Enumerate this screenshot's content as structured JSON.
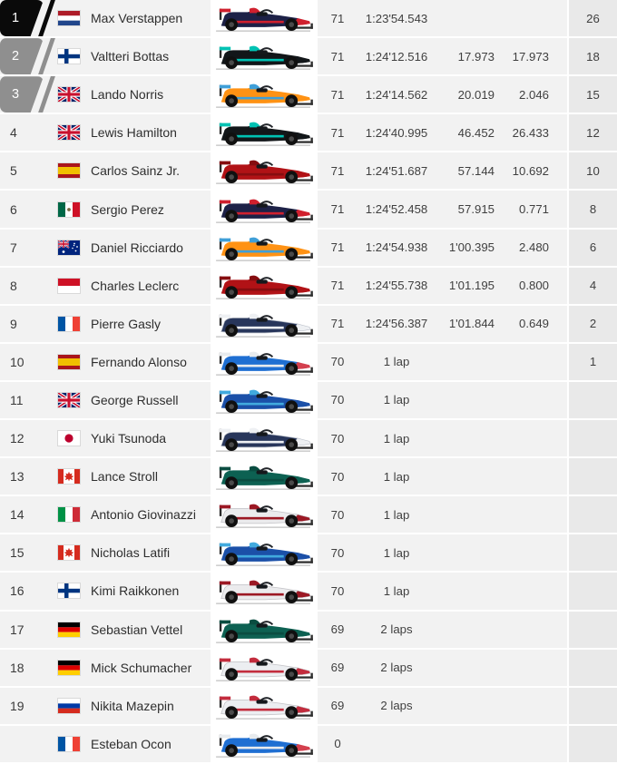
{
  "table": {
    "name": "race-results",
    "colors": {
      "row_bg": "#f2f2f2",
      "points_col_bg": "#e9e9e9",
      "car_col_bg": "#ffffff",
      "badge_first": "#0a0a0a",
      "badge_podium": "#8f8f8f",
      "text": "#3f3f3f",
      "ground_line": "#b4b4b4"
    },
    "teams": {
      "red-bull": {
        "body": "#1d2147",
        "accent": "#d0202e",
        "nose": "#d0202e",
        "outline": "none"
      },
      "mercedes": {
        "body": "#121619",
        "accent": "#00c2b3",
        "nose": "#121619",
        "outline": "none"
      },
      "mclaren": {
        "body": "#ff9214",
        "accent": "#3f9fd8",
        "nose": "#ff9214",
        "outline": "none"
      },
      "ferrari": {
        "body": "#b11216",
        "accent": "#860d10",
        "nose": "#b11216",
        "outline": "none"
      },
      "alphatauri": {
        "body": "#28365b",
        "accent": "#eef0f3",
        "nose": "#eef0f3",
        "outline": "#b9bec7"
      },
      "alpine": {
        "body": "#1f6fd2",
        "accent": "#e8ebee",
        "nose": "#d4404e",
        "outline": "none"
      },
      "williams": {
        "body": "#1b50a8",
        "accent": "#41aade",
        "nose": "#1b50a8",
        "outline": "none"
      },
      "aston-martin": {
        "body": "#0d6152",
        "accent": "#0a4d41",
        "nose": "#0d6152",
        "outline": "none"
      },
      "alfa-romeo": {
        "body": "#ebebed",
        "accent": "#9c1824",
        "nose": "#9c1824",
        "outline": "#c2c2c6"
      },
      "haas": {
        "body": "#eceef1",
        "accent": "#c32c3d",
        "nose": "#c32c3d",
        "outline": "#c2c2c6"
      }
    },
    "flags": {
      "nl": {
        "type": "h",
        "stripes": [
          "#AE1C28",
          "#FFFFFF",
          "#21468B"
        ]
      },
      "fi": {
        "type": "fi",
        "bg": "#FFFFFF",
        "cross": "#003580"
      },
      "gb": {
        "type": "gb",
        "bg": "#012169",
        "red": "#C8102E",
        "white": "#FFFFFF"
      },
      "es": {
        "type": "h",
        "stripes": [
          "#AA151B",
          "#F1BF00",
          "#AA151B"
        ],
        "ratios": [
          1,
          2,
          1
        ]
      },
      "mx": {
        "type": "v",
        "stripes": [
          "#006847",
          "#FFFFFF",
          "#CE1126"
        ],
        "emblem": "#7c6a42"
      },
      "au": {
        "type": "au",
        "bg": "#00247D",
        "red": "#C8102E",
        "white": "#FFFFFF"
      },
      "mc": {
        "type": "h",
        "stripes": [
          "#CE1126",
          "#FFFFFF"
        ]
      },
      "fr": {
        "type": "v",
        "stripes": [
          "#0055A4",
          "#FFFFFF",
          "#EF4135"
        ]
      },
      "jp": {
        "type": "jp",
        "bg": "#FFFFFF",
        "sun": "#BC002D"
      },
      "ca": {
        "type": "ca",
        "red": "#D52B1E",
        "white": "#FFFFFF"
      },
      "it": {
        "type": "v",
        "stripes": [
          "#009246",
          "#FFFFFF",
          "#CE2B37"
        ]
      },
      "de": {
        "type": "h",
        "stripes": [
          "#000000",
          "#DD0000",
          "#FFCE00"
        ]
      },
      "ru": {
        "type": "h",
        "stripes": [
          "#FFFFFF",
          "#0039A6",
          "#D52B1E"
        ]
      }
    },
    "rows": [
      {
        "pos": "1",
        "badge": "first",
        "flag": "nl",
        "name": "Max Verstappen",
        "team": "red-bull",
        "laps": "71",
        "time": "1:23'54.543",
        "gap": "",
        "interval": "",
        "points": "26"
      },
      {
        "pos": "2",
        "badge": "podium",
        "flag": "fi",
        "name": "Valtteri Bottas",
        "team": "mercedes",
        "laps": "71",
        "time": "1:24'12.516",
        "gap": "17.973",
        "interval": "17.973",
        "points": "18"
      },
      {
        "pos": "3",
        "badge": "podium",
        "flag": "gb",
        "name": "Lando Norris",
        "team": "mclaren",
        "laps": "71",
        "time": "1:24'14.562",
        "gap": "20.019",
        "interval": "2.046",
        "points": "15"
      },
      {
        "pos": "4",
        "badge": null,
        "flag": "gb",
        "name": "Lewis Hamilton",
        "team": "mercedes",
        "laps": "71",
        "time": "1:24'40.995",
        "gap": "46.452",
        "interval": "26.433",
        "points": "12"
      },
      {
        "pos": "5",
        "badge": null,
        "flag": "es",
        "name": "Carlos Sainz Jr.",
        "team": "ferrari",
        "laps": "71",
        "time": "1:24'51.687",
        "gap": "57.144",
        "interval": "10.692",
        "points": "10"
      },
      {
        "pos": "6",
        "badge": null,
        "flag": "mx",
        "name": "Sergio Perez",
        "team": "red-bull",
        "laps": "71",
        "time": "1:24'52.458",
        "gap": "57.915",
        "interval": "0.771",
        "points": "8"
      },
      {
        "pos": "7",
        "badge": null,
        "flag": "au",
        "name": "Daniel Ricciardo",
        "team": "mclaren",
        "laps": "71",
        "time": "1:24'54.938",
        "gap": "1'00.395",
        "interval": "2.480",
        "points": "6"
      },
      {
        "pos": "8",
        "badge": null,
        "flag": "mc",
        "name": "Charles Leclerc",
        "team": "ferrari",
        "laps": "71",
        "time": "1:24'55.738",
        "gap": "1'01.195",
        "interval": "0.800",
        "points": "4"
      },
      {
        "pos": "9",
        "badge": null,
        "flag": "fr",
        "name": "Pierre Gasly",
        "team": "alphatauri",
        "laps": "71",
        "time": "1:24'56.387",
        "gap": "1'01.844",
        "interval": "0.649",
        "points": "2"
      },
      {
        "pos": "10",
        "badge": null,
        "flag": "es",
        "name": "Fernando Alonso",
        "team": "alpine",
        "laps": "70",
        "time": "1 lap",
        "gap": "",
        "interval": "",
        "points": "1"
      },
      {
        "pos": "11",
        "badge": null,
        "flag": "gb",
        "name": "George Russell",
        "team": "williams",
        "laps": "70",
        "time": "1 lap",
        "gap": "",
        "interval": "",
        "points": ""
      },
      {
        "pos": "12",
        "badge": null,
        "flag": "jp",
        "name": "Yuki Tsunoda",
        "team": "alphatauri",
        "laps": "70",
        "time": "1 lap",
        "gap": "",
        "interval": "",
        "points": ""
      },
      {
        "pos": "13",
        "badge": null,
        "flag": "ca",
        "name": "Lance Stroll",
        "team": "aston-martin",
        "laps": "70",
        "time": "1 lap",
        "gap": "",
        "interval": "",
        "points": ""
      },
      {
        "pos": "14",
        "badge": null,
        "flag": "it",
        "name": "Antonio Giovinazzi",
        "team": "alfa-romeo",
        "laps": "70",
        "time": "1 lap",
        "gap": "",
        "interval": "",
        "points": ""
      },
      {
        "pos": "15",
        "badge": null,
        "flag": "ca",
        "name": "Nicholas Latifi",
        "team": "williams",
        "laps": "70",
        "time": "1 lap",
        "gap": "",
        "interval": "",
        "points": ""
      },
      {
        "pos": "16",
        "badge": null,
        "flag": "fi",
        "name": "Kimi Raikkonen",
        "team": "alfa-romeo",
        "laps": "70",
        "time": "1 lap",
        "gap": "",
        "interval": "",
        "points": ""
      },
      {
        "pos": "17",
        "badge": null,
        "flag": "de",
        "name": "Sebastian Vettel",
        "team": "aston-martin",
        "laps": "69",
        "time": "2 laps",
        "gap": "",
        "interval": "",
        "points": ""
      },
      {
        "pos": "18",
        "badge": null,
        "flag": "de",
        "name": "Mick Schumacher",
        "team": "haas",
        "laps": "69",
        "time": "2 laps",
        "gap": "",
        "interval": "",
        "points": ""
      },
      {
        "pos": "19",
        "badge": null,
        "flag": "ru",
        "name": "Nikita Mazepin",
        "team": "haas",
        "laps": "69",
        "time": "2 laps",
        "gap": "",
        "interval": "",
        "points": ""
      },
      {
        "pos": "",
        "badge": null,
        "flag": "fr",
        "name": "Esteban Ocon",
        "team": "alpine",
        "laps": "0",
        "time": "",
        "gap": "",
        "interval": "",
        "points": ""
      }
    ]
  }
}
